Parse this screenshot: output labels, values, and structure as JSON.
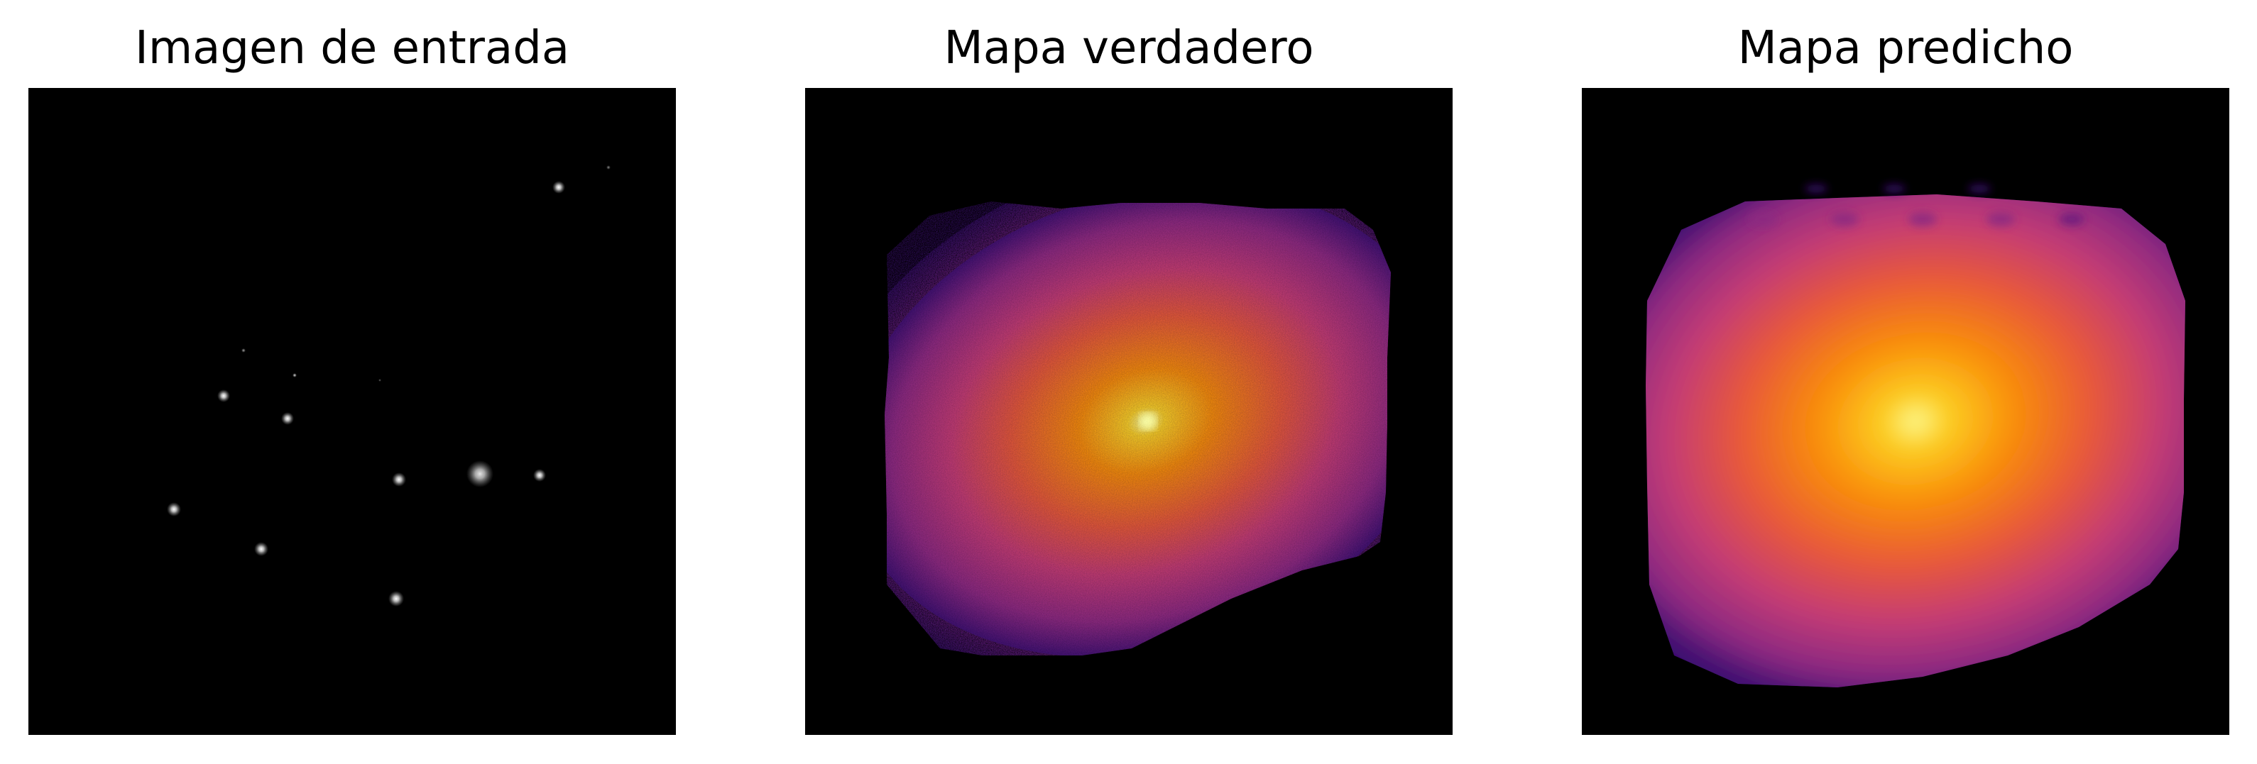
{
  "panels": [
    {
      "title": "Imagen de entrada",
      "colormap": "gray"
    },
    {
      "title": "Mapa verdadero",
      "colormap": "inferno"
    },
    {
      "title": "Mapa predicho",
      "colormap": "inferno"
    }
  ],
  "colors": {
    "background": "#000000",
    "page": "#ffffff",
    "inferno_dark_purple": "#3b0f70",
    "inferno_purple": "#8c2981",
    "inferno_magenta": "#c43c75",
    "inferno_red_orange": "#e8593a",
    "inferno_orange": "#f98e09",
    "inferno_yellow": "#fcd225",
    "inferno_bright": "#fcffa4"
  }
}
